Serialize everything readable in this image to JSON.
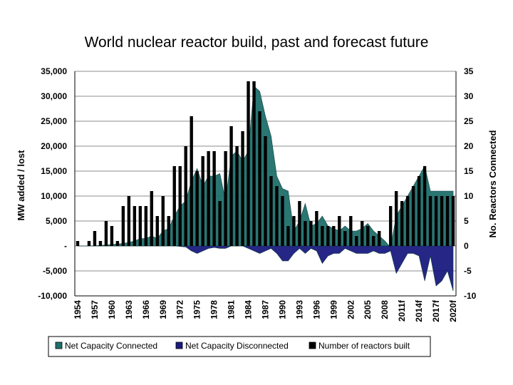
{
  "chart_data": {
    "type": "bar",
    "title": "World nuclear reactor build, past and forecast future",
    "ylabel": "MW added / lost",
    "y2label": "No. Reactors Connected",
    "ylim": [
      -10000,
      35000
    ],
    "y2lim": [
      -10,
      35
    ],
    "yticks": [
      "35,000",
      "30,000",
      "25,000",
      "20,000",
      "15,000",
      "10,000",
      "5,000",
      "-",
      "-5,000",
      "-10,000"
    ],
    "y2ticks": [
      "35",
      "30",
      "25",
      "20",
      "15",
      "10",
      "5",
      "0",
      "-5",
      "-10"
    ],
    "xticks": [
      "1954",
      "1957",
      "1960",
      "1963",
      "1966",
      "1969",
      "1972",
      "1975",
      "1978",
      "1981",
      "1984",
      "1987",
      "1990",
      "1993",
      "1996",
      "1999",
      "2002",
      "2005",
      "2008",
      "2011f",
      "2014f",
      "2017f",
      "2020f"
    ],
    "categories": [
      "1954",
      "1955",
      "1956",
      "1957",
      "1958",
      "1959",
      "1960",
      "1961",
      "1962",
      "1963",
      "1964",
      "1965",
      "1966",
      "1967",
      "1968",
      "1969",
      "1970",
      "1971",
      "1972",
      "1973",
      "1974",
      "1975",
      "1976",
      "1977",
      "1978",
      "1979",
      "1980",
      "1981",
      "1982",
      "1983",
      "1984",
      "1985",
      "1986",
      "1987",
      "1988",
      "1989",
      "1990",
      "1991",
      "1992",
      "1993",
      "1994",
      "1995",
      "1996",
      "1997",
      "1998",
      "1999",
      "2000",
      "2001",
      "2002",
      "2003",
      "2004",
      "2005",
      "2006",
      "2007",
      "2008",
      "2009",
      "2010",
      "2011f",
      "2012f",
      "2013f",
      "2014f",
      "2015f",
      "2016f",
      "2017f",
      "2018f",
      "2019f",
      "2020f"
    ],
    "series": [
      {
        "name": "Net Capacity Connected",
        "type": "area",
        "color": "#1f6f6b",
        "values": [
          0,
          0,
          0,
          50,
          100,
          200,
          300,
          400,
          500,
          700,
          1000,
          1500,
          1500,
          2000,
          1500,
          3000,
          3500,
          6000,
          8000,
          9000,
          13000,
          15500,
          12000,
          14000,
          14000,
          14500,
          9000,
          18000,
          19000,
          17000,
          19000,
          32000,
          31000,
          26000,
          22000,
          14000,
          11500,
          11000,
          3000,
          5000,
          8500,
          4000,
          4500,
          6000,
          4000,
          3500,
          3000,
          4000,
          3000,
          3000,
          3500,
          4500,
          3000,
          2000,
          1000,
          -300,
          6000,
          8000,
          10000,
          12000,
          14000,
          16000,
          11000,
          11000,
          11000,
          11000,
          11000
        ]
      },
      {
        "name": "Net Capacity Disconnected",
        "type": "area",
        "color": "#1a1a80",
        "values": [
          0,
          0,
          0,
          0,
          0,
          0,
          0,
          0,
          0,
          0,
          0,
          0,
          0,
          0,
          0,
          0,
          0,
          0,
          -100,
          -200,
          -1000,
          -1500,
          -1000,
          -500,
          -300,
          -500,
          -500,
          0,
          0,
          0,
          -500,
          -1000,
          -1500,
          -1000,
          -500,
          -1500,
          -3000,
          -3000,
          -1500,
          -500,
          -1500,
          -500,
          -1000,
          -3500,
          -2000,
          -1500,
          -1500,
          -500,
          -1000,
          -1500,
          -1500,
          -1500,
          -1000,
          -1500,
          -1500,
          -1000,
          -5500,
          -3500,
          -1500,
          -1500,
          -2000,
          -7000,
          -2000,
          -8000,
          -7000,
          -5000,
          -9000
        ]
      },
      {
        "name": "Number of reactors built",
        "type": "bar",
        "axis": "right",
        "color": "#000000",
        "values": [
          1,
          0,
          1,
          3,
          1,
          5,
          4,
          1,
          8,
          10,
          8,
          8,
          8,
          11,
          6,
          10,
          6,
          16,
          16,
          20,
          26,
          15,
          18,
          19,
          19,
          9,
          19,
          24,
          20,
          23,
          33,
          33,
          27,
          22,
          14,
          12,
          10,
          4,
          6,
          9,
          5,
          5,
          7,
          4,
          4,
          4,
          6,
          3,
          6,
          2,
          5,
          4,
          2,
          3,
          0,
          8,
          11,
          9,
          10,
          12,
          14,
          16,
          10,
          10,
          10,
          10,
          10
        ]
      }
    ],
    "legend": [
      "Net Capacity Connected",
      "Net Capacity Disconnected",
      "Number of reactors built"
    ],
    "legend_position": "bottom",
    "grid": true
  }
}
